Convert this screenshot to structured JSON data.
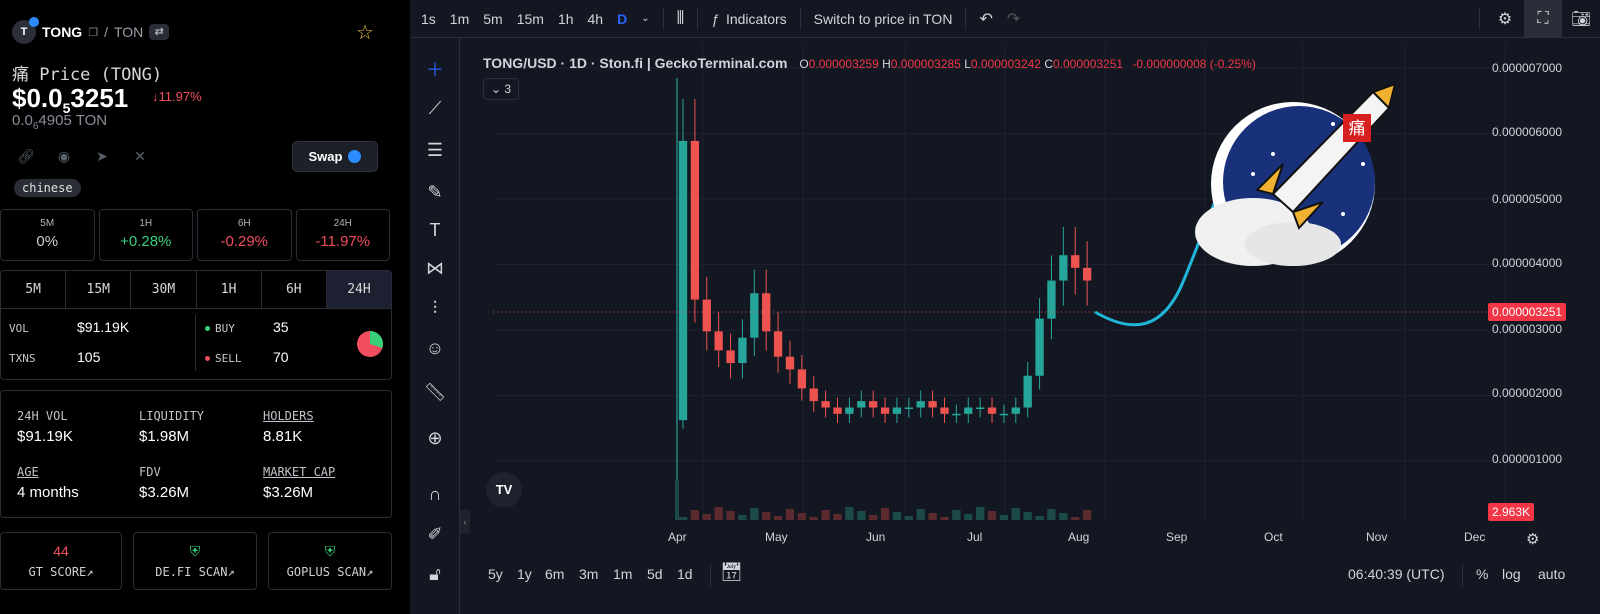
{
  "token": {
    "logo_letter": "T",
    "symbol": "TONG",
    "separator": "/",
    "quote": "TON",
    "price_label": "痛 Price (TONG)",
    "price_usd_prefix": "$0.0",
    "price_usd_sub": "5",
    "price_usd_suffix": "3251",
    "price_change": "↓11.97%",
    "price_ton_prefix": "0.0",
    "price_ton_sub": "6",
    "price_ton_suffix": "4905 TON",
    "swap_label": "Swap",
    "tag": "chinese"
  },
  "performance": [
    {
      "label": "5M",
      "value": "0%",
      "kind": "neu"
    },
    {
      "label": "1H",
      "value": "+0.28%",
      "kind": "pos"
    },
    {
      "label": "6H",
      "value": "-0.29%",
      "kind": "neg"
    },
    {
      "label": "24H",
      "value": "-11.97%",
      "kind": "neg"
    }
  ],
  "timeframes": [
    "5M",
    "15M",
    "30M",
    "1H",
    "6H",
    "24H"
  ],
  "tx": {
    "vol_label": "VOL",
    "vol_value": "$91.19K",
    "txns_label": "TXNS",
    "txns_value": "105",
    "buy_label": "BUY",
    "buy_value": "35",
    "sell_label": "SELL",
    "sell_value": "70",
    "buy_color": "#39d07a",
    "sell_color": "#f04e5e"
  },
  "stats": {
    "vol24_label": "24H VOL",
    "vol24_value": "$91.19K",
    "liq_label": "LIQUIDITY",
    "liq_value": "$1.98M",
    "holders_label": "HOLDERS",
    "holders_value": "8.81K",
    "age_label": "AGE",
    "age_value": "4 months",
    "fdv_label": "FDV",
    "fdv_value": "$3.26M",
    "mcap_label": "MARKET CAP",
    "mcap_value": "$3.26M"
  },
  "scans": {
    "gt_score": "44",
    "gt_label": "GT SCORE↗",
    "defi_label": "DE.FI SCAN↗",
    "goplus_label": "GOPLUS SCAN↗"
  },
  "toolbar": {
    "intervals": [
      "1s",
      "1m",
      "5m",
      "15m",
      "1h",
      "4h",
      "D"
    ],
    "active_interval": "D",
    "indicators": "Indicators",
    "switch_price": "Switch to price in TON"
  },
  "legend": {
    "pair": "TONG/USD · 1D · Ston.fi | GeckoTerminal.com",
    "o": "0.000003259",
    "h": "0.000003285",
    "l": "0.000003242",
    "c": "0.000003251",
    "chg": "-0.000000008 (-0.25%)",
    "o_label": "O",
    "h_label": "H",
    "l_label": "L",
    "c_label": "C",
    "indicator_count": "3"
  },
  "chart_data": {
    "type": "candlestick",
    "title": "TONG/USD · 1D · Ston.fi | GeckoTerminal.com",
    "y_ticks": [
      "0.000007000",
      "0.000006000",
      "0.000005000",
      "0.000004000",
      "0.000003000",
      "0.000002000",
      "0.000001000"
    ],
    "x_ticks": [
      "Apr",
      "May",
      "Jun",
      "Jul",
      "Aug",
      "Sep",
      "Oct",
      "Nov",
      "Dec"
    ],
    "current_price_tag": "0.000003251",
    "volume_tag": "2.963K",
    "ylim": [
      0,
      7.5e-06
    ],
    "series": [
      {
        "name": "TONG/USD",
        "approx_close": [
          5.5e-06,
          3e-06,
          2.5e-06,
          2.2e-06,
          2e-06,
          2.4e-06,
          3.1e-06,
          2.5e-06,
          2.1e-06,
          1.9e-06,
          1.6e-06,
          1.4e-06,
          1.3e-06,
          1.2e-06,
          1.3e-06,
          1.4e-06,
          1.3e-06,
          1.2e-06,
          1.3e-06,
          1.3e-06,
          1.4e-06,
          1.3e-06,
          1.2e-06,
          1.2e-06,
          1.3e-06,
          1.3e-06,
          1.2e-06,
          1.2e-06,
          1.3e-06,
          1.8e-06,
          2.7e-06,
          3.3e-06,
          3.7e-06,
          3.5e-06,
          3.3e-06
        ]
      }
    ],
    "accent_line": "#1fb6d8",
    "up_color": "#26a69a",
    "down_color": "#ef5350"
  },
  "bottom": {
    "ranges": [
      "5y",
      "1y",
      "6m",
      "3m",
      "1m",
      "5d",
      "1d"
    ],
    "time": "06:40:39 (UTC)",
    "percent": "%",
    "log": "log",
    "auto": "auto"
  },
  "mascot_char": "痛",
  "tv_logo": "TV"
}
